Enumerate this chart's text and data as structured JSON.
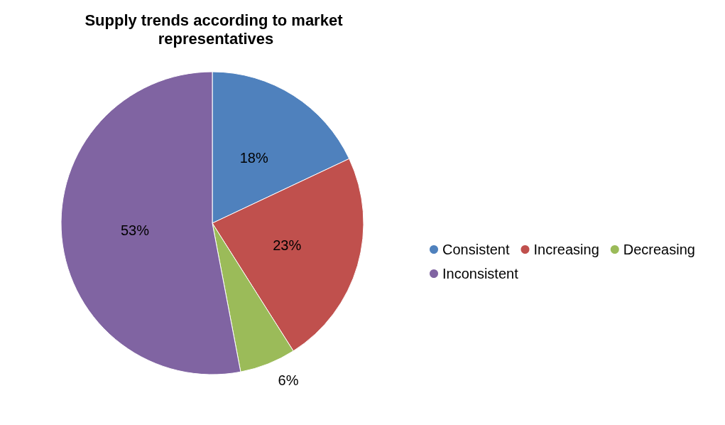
{
  "chart_data": {
    "type": "pie",
    "title": "Supply trends according to market representatives",
    "categories": [
      "Consistent",
      "Increasing",
      "Decreasing",
      "Inconsistent"
    ],
    "values": [
      18,
      23,
      6,
      53
    ],
    "colors": [
      "#4f81bd",
      "#c0504d",
      "#9bbb59",
      "#8064a2"
    ],
    "value_labels": [
      "18%",
      "23%",
      "6%",
      "53%"
    ],
    "legend": "right"
  }
}
